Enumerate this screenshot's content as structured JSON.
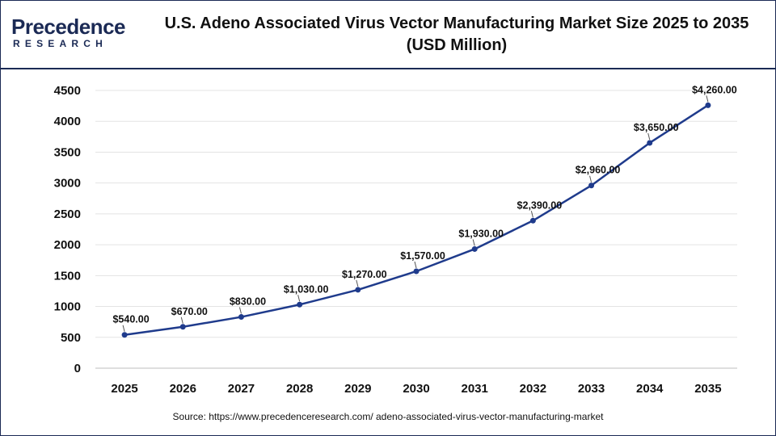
{
  "logo": {
    "main": "Precedence",
    "sub": "RESEARCH"
  },
  "title_line1": "U.S. Adeno Associated Virus Vector Manufacturing Market Size 2025 to 2035",
  "title_line2": "(USD Million)",
  "source": "Source: https://www.precedenceresearch.com/ adeno-associated-virus-vector-manufacturing-market",
  "colors": {
    "line": "#1f3b8c",
    "brand": "#1b2a55",
    "grid": "#e3e3e3"
  },
  "chart_data": {
    "type": "line",
    "categories": [
      "2025",
      "2026",
      "2027",
      "2028",
      "2029",
      "2030",
      "2031",
      "2032",
      "2033",
      "2034",
      "2035"
    ],
    "series": [
      {
        "values": [
          540,
          670,
          830,
          1030,
          1270,
          1570,
          1930,
          2390,
          2960,
          3650,
          4260
        ]
      }
    ],
    "data_labels": [
      "$540.00",
      "$670.00",
      "$830.00",
      "$1,030.00",
      "$1,270.00",
      "$1,570.00",
      "$1,930.00",
      "$2,390.00",
      "$2,960.00",
      "$3,650.00",
      "$4,260.00"
    ],
    "yticks": [
      0,
      500,
      1000,
      1500,
      2000,
      2500,
      3000,
      3500,
      4000,
      4500
    ],
    "ylim": [
      0,
      4500
    ],
    "grid": true,
    "legend": false
  }
}
